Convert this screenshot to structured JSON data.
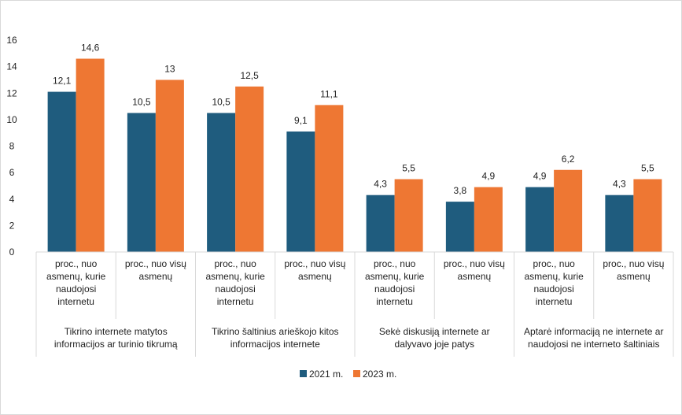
{
  "chart_data": {
    "type": "bar",
    "title": "",
    "xlabel": "",
    "ylabel": "",
    "ylim": [
      0,
      16
    ],
    "yticks": [
      "0",
      "2",
      "4",
      "6",
      "8",
      "10",
      "12",
      "14",
      "16"
    ],
    "grid": false,
    "legend_position": "bottom",
    "categories": [
      "proc., nuo asmenų, kurie naudojosi internetu",
      "proc., nuo visų asmenų",
      "proc., nuo asmenų, kurie naudojosi internetu",
      "proc., nuo visų asmenų",
      "proc., nuo asmenų, kurie naudojosi internetu",
      "proc., nuo visų asmenų",
      "proc., nuo asmenų, kurie naudojosi internetu",
      "proc., nuo visų asmenų"
    ],
    "category_lines": [
      [
        "proc., nuo",
        "asmenų, kurie",
        "naudojosi",
        "internetu"
      ],
      [
        "proc., nuo visų",
        "asmenų"
      ],
      [
        "proc., nuo",
        "asmenų, kurie",
        "naudojosi",
        "internetu"
      ],
      [
        "proc., nuo visų",
        "asmenų"
      ],
      [
        "proc., nuo",
        "asmenų, kurie",
        "naudojosi",
        "internetu"
      ],
      [
        "proc., nuo visų",
        "asmenų"
      ],
      [
        "proc., nuo",
        "asmenų, kurie",
        "naudojosi",
        "internetu"
      ],
      [
        "proc., nuo visų",
        "asmenų"
      ]
    ],
    "groups": [
      {
        "label": "Tikrino internete matytos informacijos ar turinio tikrumą",
        "lines": [
          "Tikrino internete matytos",
          "informacijos ar turinio tikrumą"
        ]
      },
      {
        "label": "Tikrino šaltinius arieškojo kitos informacijos internete",
        "lines": [
          "Tikrino šaltinius arieškojo kitos",
          "informacijos internete"
        ]
      },
      {
        "label": "Sekė diskusiją internete ar dalyvavo joje patys",
        "lines": [
          "Sekė diskusiją internete ar",
          "dalyvavo joje patys"
        ]
      },
      {
        "label": "Aptarė informaciją ne internete ar naudojosi ne interneto šaltiniais",
        "lines": [
          "Aptarė informaciją ne internete ar",
          "naudojosi ne interneto šaltiniais"
        ]
      }
    ],
    "series": [
      {
        "name": "2021 m.",
        "color": "#1f5c7e",
        "values": [
          12.1,
          10.5,
          10.5,
          9.1,
          4.3,
          3.8,
          4.9,
          4.3
        ],
        "labels": [
          "12,1",
          "10,5",
          "10,5",
          "9,1",
          "4,3",
          "3,8",
          "4,9",
          "4,3"
        ]
      },
      {
        "name": "2023 m.",
        "color": "#ee7733",
        "values": [
          14.6,
          13,
          12.5,
          11.1,
          5.5,
          4.9,
          6.2,
          5.5
        ],
        "labels": [
          "14,6",
          "13",
          "12,5",
          "11,1",
          "5,5",
          "4,9",
          "6,2",
          "5,5"
        ]
      }
    ]
  }
}
